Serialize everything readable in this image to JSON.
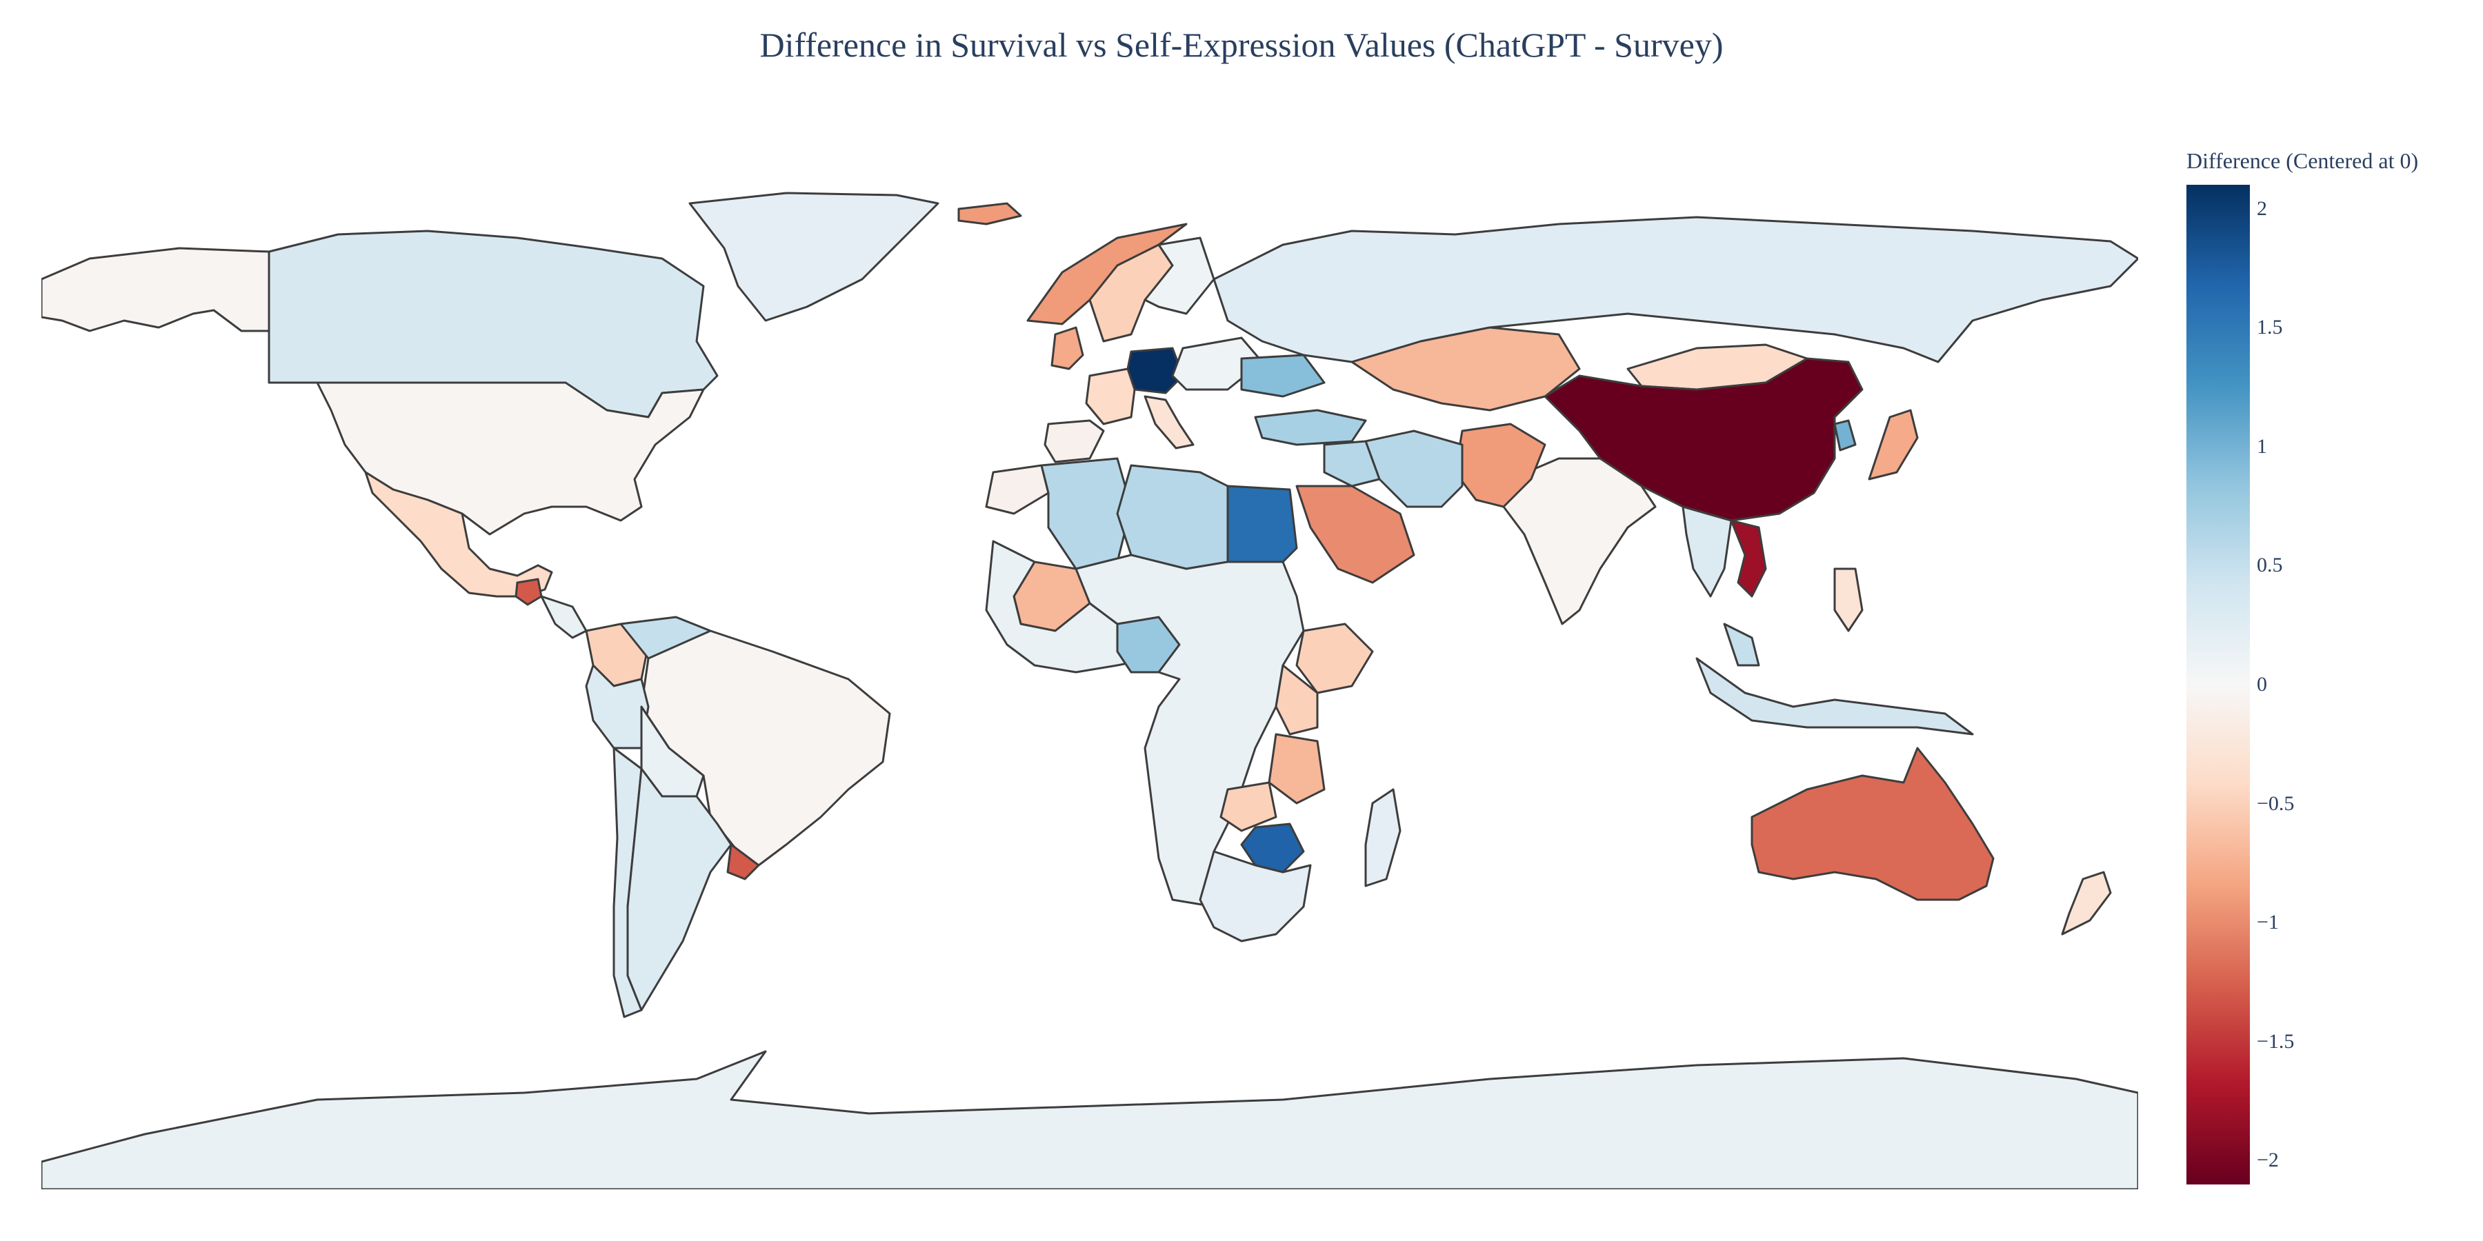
{
  "title": "Difference in Survival vs Self-Expression Values (ChatGPT - Survey)",
  "colorbar": {
    "title": "Difference (Centered at 0)",
    "range": [
      -2.1,
      2.1
    ],
    "ticks": [
      "2",
      "1.5",
      "1",
      "0.5",
      "0",
      "−0.5",
      "−1",
      "−1.5",
      "−2"
    ],
    "tick_values": [
      2,
      1.5,
      1,
      0.5,
      0,
      -0.5,
      -1,
      -1.5,
      -2
    ],
    "colors": [
      "#67001f",
      "#b2182b",
      "#d6604d",
      "#f4a582",
      "#fddbc7",
      "#f7f7f7",
      "#d1e5f0",
      "#92c5de",
      "#4393c3",
      "#2166ac",
      "#053061"
    ]
  },
  "regions": [
    {
      "name": "Canada",
      "value": 0.35
    },
    {
      "name": "Greenland",
      "value": 0.2
    },
    {
      "name": "Alaska",
      "value": -0.05
    },
    {
      "name": "United States",
      "value": -0.05
    },
    {
      "name": "Mexico",
      "value": -0.4
    },
    {
      "name": "Guatemala",
      "value": -1.3
    },
    {
      "name": "Brazil",
      "value": -0.05
    },
    {
      "name": "Colombia",
      "value": -0.5
    },
    {
      "name": "Venezuela",
      "value": 0.5
    },
    {
      "name": "Peru",
      "value": 0.3
    },
    {
      "name": "Bolivia",
      "value": 0.15
    },
    {
      "name": "Argentina",
      "value": 0.3
    },
    {
      "name": "Chile",
      "value": 0.3
    },
    {
      "name": "Uruguay",
      "value": -1.3
    },
    {
      "name": "Norway",
      "value": -0.9
    },
    {
      "name": "Sweden",
      "value": -0.5
    },
    {
      "name": "Finland",
      "value": 0.1
    },
    {
      "name": "Iceland",
      "value": -0.9
    },
    {
      "name": "United Kingdom",
      "value": -0.8
    },
    {
      "name": "Germany",
      "value": 2.1
    },
    {
      "name": "France",
      "value": -0.4
    },
    {
      "name": "Spain",
      "value": -0.1
    },
    {
      "name": "Italy",
      "value": -0.3
    },
    {
      "name": "Ukraine",
      "value": 0.9
    },
    {
      "name": "Turkey",
      "value": 0.7
    },
    {
      "name": "Russia",
      "value": 0.25
    },
    {
      "name": "Kazakhstan",
      "value": -0.7
    },
    {
      "name": "Mongolia",
      "value": -0.4
    },
    {
      "name": "China",
      "value": -2.1
    },
    {
      "name": "Vietnam",
      "value": -1.8
    },
    {
      "name": "South Korea",
      "value": 1.0
    },
    {
      "name": "Japan",
      "value": -0.8
    },
    {
      "name": "India",
      "value": -0.05
    },
    {
      "name": "Iran",
      "value": 0.6
    },
    {
      "name": "Saudi Arabia",
      "value": -1.0
    },
    {
      "name": "Iraq",
      "value": 0.6
    },
    {
      "name": "Egypt",
      "value": 1.6
    },
    {
      "name": "Libya",
      "value": 0.6
    },
    {
      "name": "Algeria",
      "value": 0.6
    },
    {
      "name": "Morocco",
      "value": -0.1
    },
    {
      "name": "Mali",
      "value": -0.7
    },
    {
      "name": "Nigeria",
      "value": 0.8
    },
    {
      "name": "Ethiopia",
      "value": -0.5
    },
    {
      "name": "Kenya",
      "value": -0.5
    },
    {
      "name": "Tanzania",
      "value": -0.7
    },
    {
      "name": "Zambia",
      "value": -0.5
    },
    {
      "name": "Zimbabwe",
      "value": 1.7
    },
    {
      "name": "Africa (other)",
      "value": 0.15
    },
    {
      "name": "South Africa",
      "value": 0.2
    },
    {
      "name": "Madagascar",
      "value": 0.2
    },
    {
      "name": "Indonesia",
      "value": 0.4
    },
    {
      "name": "Malaysia",
      "value": 0.5
    },
    {
      "name": "Philippines",
      "value": -0.3
    },
    {
      "name": "Thailand",
      "value": 0.3
    },
    {
      "name": "Pakistan",
      "value": -0.9
    },
    {
      "name": "Australia",
      "value": -1.2
    },
    {
      "name": "New Zealand",
      "value": -0.3
    },
    {
      "name": "Antarctica",
      "value": 0.15
    }
  ]
}
